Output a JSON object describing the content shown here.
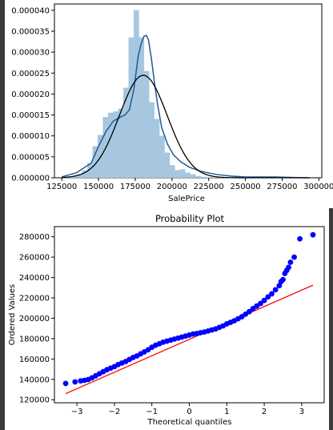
{
  "chart_data": [
    {
      "type": "histogram",
      "title": "",
      "xlabel": "SalePrice",
      "ylabel": "",
      "xlim": [
        120000,
        302000
      ],
      "ylim": [
        0,
        4.15e-05
      ],
      "xticks": [
        125000,
        150000,
        175000,
        200000,
        225000,
        250000,
        275000,
        300000
      ],
      "xtick_labels": [
        "125000",
        "150000",
        "175000",
        "200000",
        "225000",
        "250000",
        "275000",
        "300000"
      ],
      "yticks": [
        0,
        5e-06,
        1e-05,
        1.5e-05,
        2e-05,
        2.5e-05,
        3e-05,
        3.5e-05,
        4e-05
      ],
      "ytick_labels": [
        "0.000000",
        "0.000005",
        "0.000010",
        "0.000015",
        "0.000020",
        "0.000025",
        "0.000030",
        "0.000035",
        "0.000040"
      ],
      "bars": {
        "bin_width": 3500,
        "edges_start": 125000,
        "density": [
          1e-07,
          2e-07,
          4e-07,
          8e-07,
          1.7e-06,
          3.5e-06,
          7.5e-06,
          1.02e-05,
          1.45e-05,
          1.55e-05,
          1.58e-05,
          1.65e-05,
          2.15e-05,
          3.35e-05,
          4e-05,
          3.35e-05,
          2.55e-05,
          1.8e-05,
          1.4e-05,
          1e-05,
          6e-06,
          3e-06,
          1.8e-06,
          2e-06,
          1.2e-06,
          8e-07,
          4e-07,
          2e-07,
          1e-07,
          1e-07,
          1e-07,
          1e-07,
          1e-07,
          2e-07,
          2e-07,
          1e-07,
          1e-07,
          1e-07,
          1e-07,
          1e-07,
          1e-07,
          1e-07,
          1e-07,
          1e-07,
          1e-07,
          1e-07,
          1e-07,
          1e-07
        ]
      },
      "kde": {
        "x": [
          125000,
          135000,
          145000,
          150000,
          155000,
          160000,
          165000,
          168000,
          171000,
          174000,
          177000,
          179000,
          181000,
          182500,
          184000,
          186000,
          188000,
          190000,
          193000,
          197000,
          201000,
          206000,
          212000,
          220000,
          230000,
          240000,
          250000,
          260000,
          270000,
          280000,
          290000,
          293000
        ],
        "y": [
          2e-07,
          1.2e-06,
          3.5e-06,
          7.5e-06,
          1.1e-05,
          1.35e-05,
          1.45e-05,
          1.5e-05,
          1.62e-05,
          2.1e-05,
          2.9e-05,
          3.2e-05,
          3.38e-05,
          3.4e-05,
          3.3e-05,
          2.85e-05,
          2.3e-05,
          1.8e-05,
          1.2e-05,
          8e-06,
          5.5e-06,
          3.8e-06,
          2.5e-06,
          1.5e-06,
          8e-07,
          4e-07,
          2e-07,
          2e-07,
          2e-07,
          1e-07,
          0.0,
          0.0
        ],
        "color": "#1f5c99"
      },
      "normal_fit": {
        "mean": 180500,
        "std": 16300,
        "color": "#000000"
      },
      "bar_color": "#a6c7df"
    },
    {
      "type": "scatter",
      "title": "Probability Plot",
      "xlabel": "Theoretical quantiles",
      "ylabel": "Ordered Values",
      "xlim": [
        -3.6,
        3.6
      ],
      "ylim": [
        117000,
        290000
      ],
      "xticks": [
        -3,
        -2,
        -1,
        0,
        1,
        2,
        3
      ],
      "xtick_labels": [
        "−3",
        "−2",
        "−1",
        "0",
        "1",
        "2",
        "3"
      ],
      "yticks": [
        120000,
        140000,
        160000,
        180000,
        200000,
        220000,
        240000,
        260000,
        280000
      ],
      "ytick_labels": [
        "120000",
        "140000",
        "160000",
        "180000",
        "200000",
        "220000",
        "240000",
        "260000",
        "280000"
      ],
      "points": {
        "x": [
          -3.3,
          -3.05,
          -2.9,
          -2.8,
          -2.7,
          -2.6,
          -2.5,
          -2.4,
          -2.3,
          -2.2,
          -2.1,
          -2.0,
          -1.9,
          -1.8,
          -1.7,
          -1.6,
          -1.5,
          -1.4,
          -1.3,
          -1.2,
          -1.1,
          -1.0,
          -0.9,
          -0.8,
          -0.7,
          -0.6,
          -0.5,
          -0.4,
          -0.3,
          -0.2,
          -0.1,
          0.0,
          0.1,
          0.2,
          0.3,
          0.4,
          0.5,
          0.6,
          0.7,
          0.8,
          0.9,
          1.0,
          1.1,
          1.2,
          1.3,
          1.4,
          1.5,
          1.6,
          1.7,
          1.8,
          1.9,
          2.0,
          2.1,
          2.2,
          2.3,
          2.4,
          2.45,
          2.5,
          2.55,
          2.6,
          2.65,
          2.7,
          2.8,
          2.95,
          3.3
        ],
        "y": [
          136000,
          137500,
          138500,
          139000,
          139800,
          141500,
          143500,
          145500,
          147500,
          149500,
          151000,
          152500,
          154500,
          156000,
          157500,
          159500,
          161500,
          163000,
          165000,
          167000,
          169000,
          171500,
          173500,
          175000,
          176500,
          177500,
          178500,
          179500,
          180500,
          181500,
          182500,
          183500,
          184500,
          185000,
          185800,
          186500,
          187500,
          188500,
          189500,
          191000,
          192500,
          194500,
          196000,
          197500,
          199500,
          201500,
          204000,
          206500,
          209500,
          212000,
          214500,
          217500,
          221000,
          224000,
          228000,
          232000,
          236000,
          238000,
          244000,
          247000,
          250000,
          255000,
          260000,
          278000,
          282000
        ],
        "color": "#0000ff"
      },
      "fit_line": {
        "x": [
          -3.3,
          3.3
        ],
        "y": [
          126000,
          232500
        ],
        "color": "#ff0000"
      }
    }
  ]
}
